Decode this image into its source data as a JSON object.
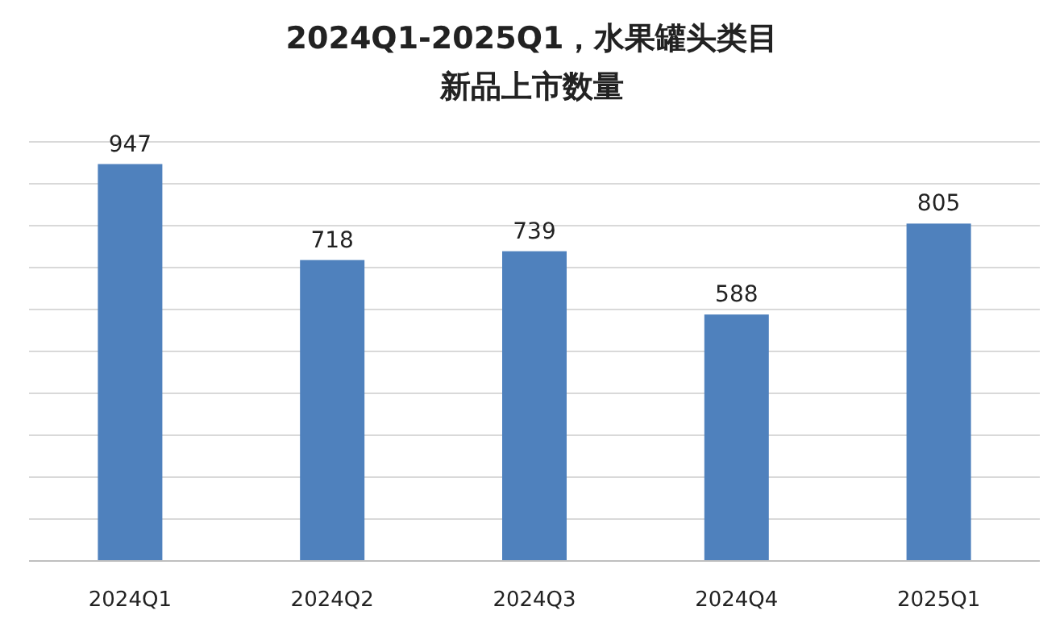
{
  "chart_data": {
    "type": "bar",
    "title": "2024Q1-2025Q1，水果罐头类目",
    "subtitle": "新品上市数量",
    "categories": [
      "2024Q1",
      "2024Q2",
      "2024Q3",
      "2024Q4",
      "2025Q1"
    ],
    "values": [
      947,
      718,
      739,
      588,
      805
    ],
    "color": "#4f81bd",
    "ylim": [
      0,
      1000
    ],
    "yticks": [
      {
        "value": 0,
        "label": null
      },
      {
        "value": 100,
        "label": null
      },
      {
        "value": 200,
        "label": null
      },
      {
        "value": 300,
        "label": null
      },
      {
        "value": 400,
        "label": null
      },
      {
        "value": 500,
        "label": null
      },
      {
        "value": 600,
        "label": null
      },
      {
        "value": 700,
        "label": null
      },
      {
        "value": 800,
        "label": null
      },
      {
        "value": 900,
        "label": null
      },
      {
        "value": 1000,
        "label": null
      }
    ],
    "grid": "y",
    "data_labels": true,
    "tick_labels": "x"
  }
}
